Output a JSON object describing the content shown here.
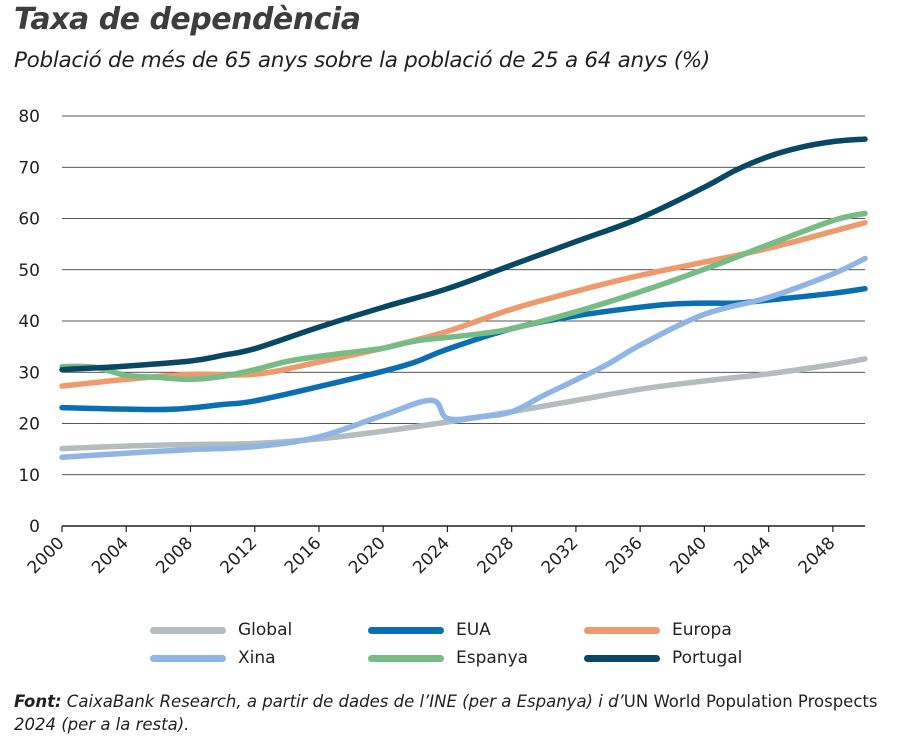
{
  "title": "Taxa de dependència",
  "subtitle": "Població de més de 65 anys sobre la població de 25 a 64 anys (%)",
  "source": {
    "label": "Font:",
    "part1": " CaixaBank Research, a partir de dades de l’INE (per a Espanya) i d’",
    "part2": "UN World Population Prospects",
    "part3": " 2024 (per a la resta)."
  },
  "chart_data": {
    "type": "line",
    "xlim": [
      2000,
      2050
    ],
    "ylim": [
      0,
      80
    ],
    "y_ticks": [
      0,
      10,
      20,
      30,
      40,
      50,
      60,
      70,
      80
    ],
    "x_ticks": [
      2000,
      2004,
      2008,
      2012,
      2016,
      2020,
      2024,
      2028,
      2032,
      2036,
      2040,
      2044,
      2048
    ],
    "y_grid": true,
    "legend_position": "bottom",
    "series": [
      {
        "name": "Global",
        "color": "#b4bcbd",
        "x": [
          2000,
          2004,
          2008,
          2012,
          2016,
          2020,
          2024,
          2028,
          2032,
          2036,
          2040,
          2044,
          2048,
          2050
        ],
        "y": [
          15.1,
          15.6,
          15.9,
          16.1,
          17.0,
          18.5,
          20.3,
          22.3,
          24.5,
          26.7,
          28.3,
          29.7,
          31.5,
          32.6
        ]
      },
      {
        "name": "EUA",
        "color": "#0a6fb2",
        "x": [
          2000,
          2004,
          2007,
          2010,
          2012,
          2016,
          2020,
          2022,
          2024,
          2028,
          2032,
          2036,
          2038,
          2040,
          2042,
          2044,
          2048,
          2050
        ],
        "y": [
          23.1,
          22.8,
          22.8,
          23.7,
          24.4,
          27.2,
          30.2,
          32.0,
          34.5,
          38.5,
          41.0,
          42.7,
          43.3,
          43.5,
          43.5,
          44.1,
          45.4,
          46.3
        ]
      },
      {
        "name": "Europa",
        "color": "#ef9a6e",
        "x": [
          2000,
          2004,
          2008,
          2012,
          2016,
          2020,
          2024,
          2028,
          2032,
          2036,
          2040,
          2044,
          2048,
          2050
        ],
        "y": [
          27.3,
          28.6,
          29.6,
          29.6,
          32.0,
          34.7,
          38.0,
          42.3,
          45.8,
          48.9,
          51.5,
          54.2,
          57.5,
          59.2
        ]
      },
      {
        "name": "Xina",
        "color": "#8eb5e3",
        "x": [
          2000,
          2004,
          2008,
          2012,
          2016,
          2020,
          2023,
          2024,
          2026,
          2028,
          2030,
          2032,
          2034,
          2036,
          2040,
          2044,
          2048,
          2050
        ],
        "y": [
          13.4,
          14.2,
          14.9,
          15.5,
          17.4,
          21.6,
          24.5,
          21.0,
          21.3,
          22.3,
          25.5,
          28.5,
          31.6,
          35.3,
          41.3,
          44.6,
          49.2,
          52.2
        ]
      },
      {
        "name": "Espanya",
        "color": "#77bc84",
        "x": [
          2000,
          2002,
          2004,
          2006,
          2008,
          2010,
          2012,
          2014,
          2016,
          2018,
          2020,
          2022,
          2024,
          2026,
          2028,
          2032,
          2036,
          2040,
          2044,
          2048,
          2050
        ],
        "y": [
          31.1,
          31.0,
          29.4,
          29.0,
          28.6,
          29.2,
          30.5,
          32.1,
          33.1,
          33.9,
          34.7,
          36.1,
          36.8,
          37.5,
          38.5,
          41.8,
          45.7,
          50.1,
          54.9,
          59.6,
          61.0
        ]
      },
      {
        "name": "Portugal",
        "color": "#084864",
        "x": [
          2000,
          2004,
          2008,
          2010,
          2012,
          2016,
          2020,
          2024,
          2028,
          2032,
          2036,
          2040,
          2042,
          2044,
          2046,
          2048,
          2050
        ],
        "y": [
          30.5,
          31.2,
          32.2,
          33.3,
          34.6,
          38.8,
          42.7,
          46.3,
          50.9,
          55.5,
          60.1,
          66.1,
          69.5,
          72.1,
          73.9,
          75.0,
          75.5
        ]
      }
    ]
  }
}
